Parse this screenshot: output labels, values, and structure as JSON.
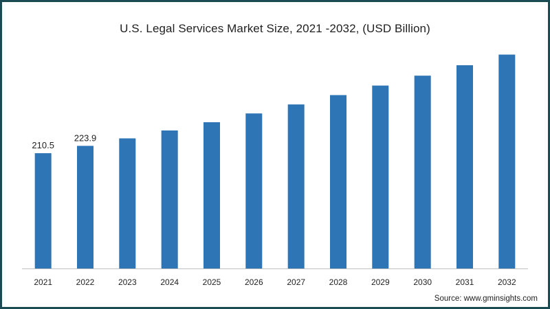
{
  "chart_data": {
    "type": "bar",
    "title": "U.S. Legal Services Market Size, 2021 -2032, (USD Billion)",
    "categories": [
      "2021",
      "2022",
      "2023",
      "2024",
      "2025",
      "2026",
      "2027",
      "2028",
      "2029",
      "2030",
      "2031",
      "2032"
    ],
    "values": [
      210.5,
      223.9,
      237.5,
      252.0,
      267.0,
      283.0,
      299.5,
      316.5,
      334.0,
      352.0,
      371.0,
      390.5
    ],
    "data_labels": [
      "210.5",
      "223.9",
      "",
      "",
      "",
      "",
      "",
      "",
      "",
      "",
      "",
      ""
    ],
    "xlabel": "",
    "ylabel": "",
    "ylim": [
      0,
      440
    ],
    "grid": false,
    "legend": "none",
    "bar_color": "#2e75b6"
  },
  "source": "Source: www.gminsights.com"
}
